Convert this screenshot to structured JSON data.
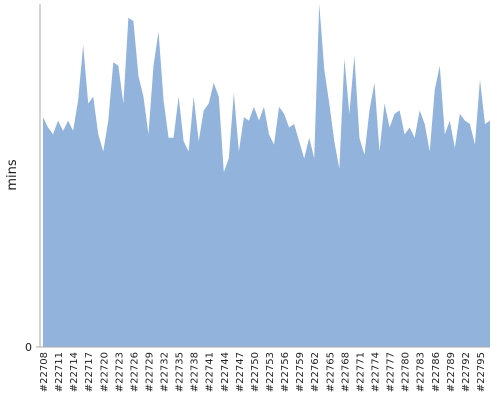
{
  "chart_data": {
    "type": "area",
    "y_label": "mins",
    "color": "#91b3dc",
    "categories": [
      "#22708",
      null,
      null,
      "#22711",
      null,
      null,
      "#22714",
      null,
      null,
      "#22717",
      null,
      null,
      "#22720",
      null,
      null,
      "#22723",
      null,
      null,
      "#22726",
      null,
      null,
      "#22729",
      null,
      null,
      "#22732",
      null,
      null,
      "#22735",
      null,
      null,
      "#22738",
      null,
      null,
      "#22741",
      null,
      null,
      "#22744",
      null,
      null,
      "#22747",
      null,
      null,
      "#22750",
      null,
      null,
      "#22753",
      null,
      null,
      "#22756",
      null,
      null,
      "#22759",
      null,
      null,
      "#22762",
      null,
      null,
      "#22765",
      null,
      null,
      "#22768",
      null,
      null,
      "#22771",
      null,
      null,
      "#22774",
      null,
      null,
      "#22777",
      null,
      null,
      "#22780",
      null,
      null,
      "#22783",
      null,
      null,
      "#22786",
      null,
      null,
      "#22789",
      null,
      null,
      "#22792",
      null,
      null,
      "#22795",
      null,
      null
    ],
    "values": [
      67,
      64,
      62,
      66,
      63,
      66,
      63,
      72,
      88,
      71,
      73,
      62,
      57,
      66,
      83,
      82,
      71,
      96,
      95,
      79,
      73,
      62,
      82,
      92,
      72,
      61,
      61,
      73,
      60,
      57,
      73,
      60,
      69,
      71,
      77,
      73,
      51,
      55,
      74,
      57,
      67,
      66,
      70,
      66,
      70,
      62,
      59,
      70,
      68,
      64,
      65,
      60,
      55,
      61,
      55,
      100,
      81,
      71,
      60,
      52,
      84,
      68,
      85,
      61,
      56,
      69,
      77,
      57,
      71,
      64,
      68,
      69,
      62,
      64,
      61,
      69,
      65,
      57,
      75,
      82,
      62,
      66,
      58,
      68,
      66,
      65,
      59,
      78,
      65,
      66
    ],
    "ylim": [
      0,
      100
    ],
    "yticks": [
      0
    ]
  }
}
